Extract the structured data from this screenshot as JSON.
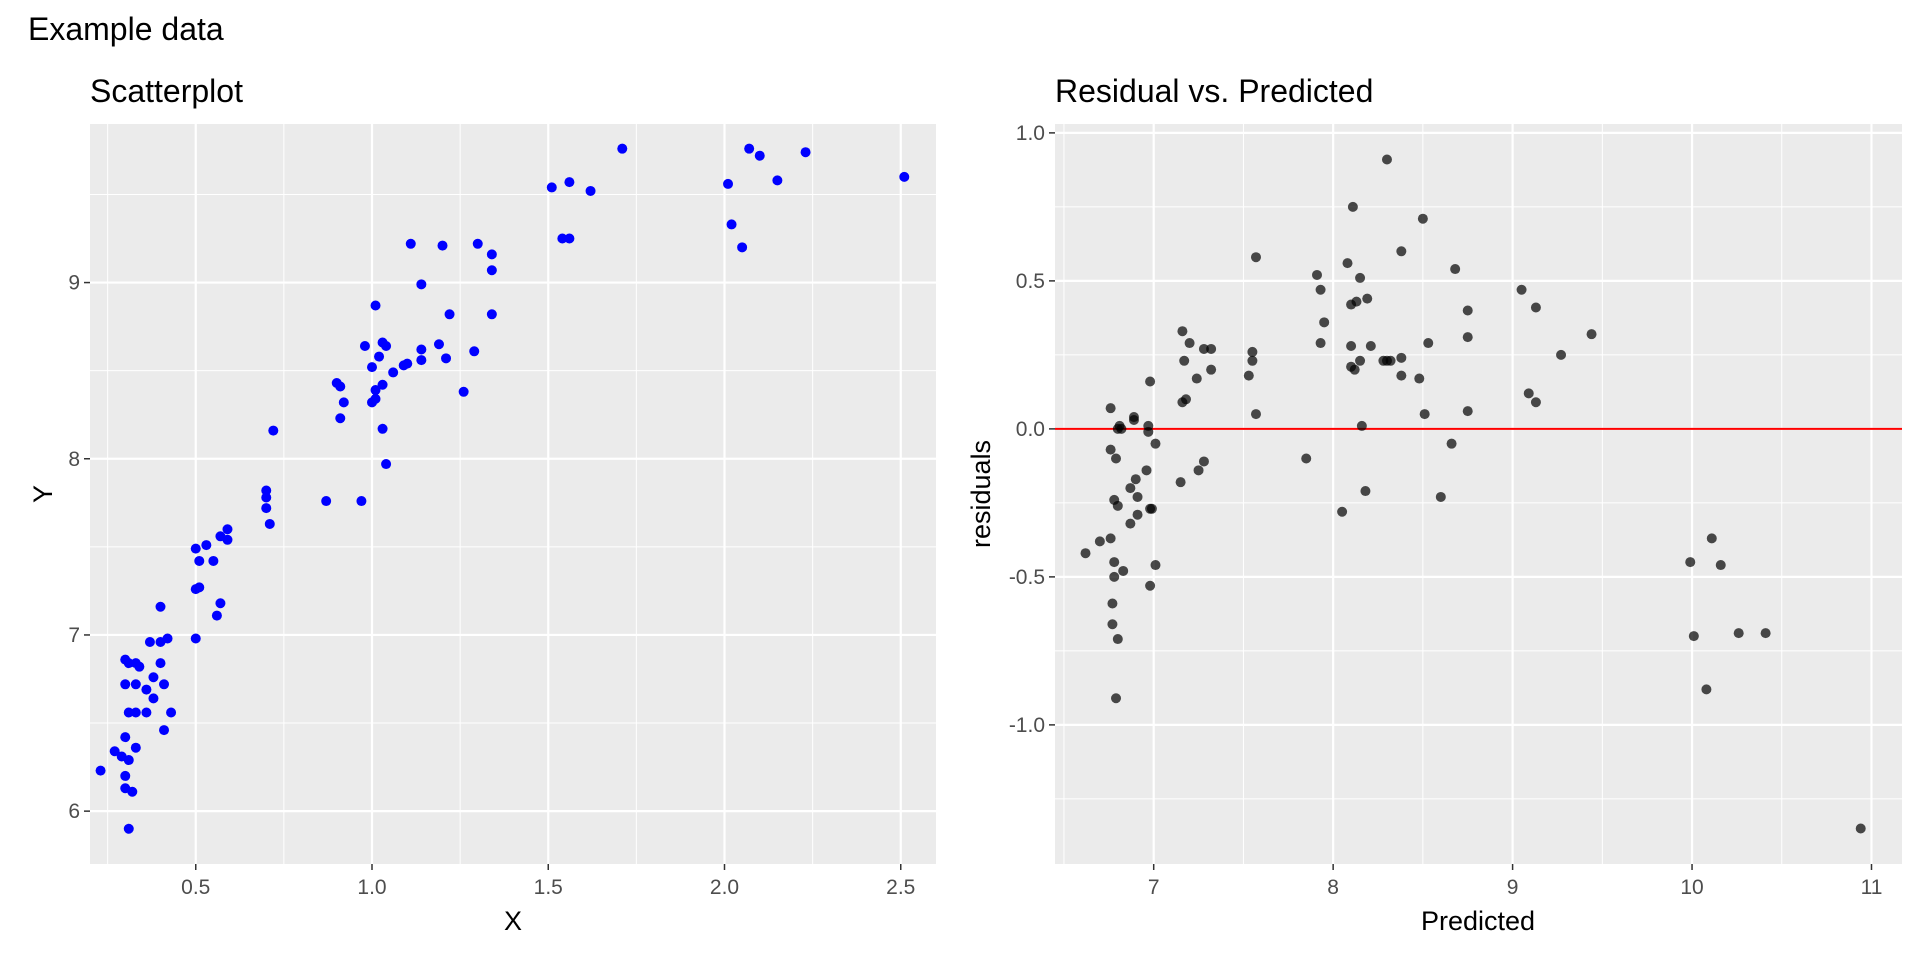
{
  "figure": {
    "title": "Example data"
  },
  "chart_data": [
    {
      "type": "scatter",
      "title": "Scatterplot",
      "xlabel": "X",
      "ylabel": "Y",
      "xlim": [
        0.2,
        2.6
      ],
      "ylim": [
        5.7,
        9.9
      ],
      "xticks": [
        0.5,
        1.0,
        1.5,
        2.0,
        2.5
      ],
      "xtick_labels": [
        "0.5",
        "1.0",
        "1.5",
        "2.0",
        "2.5"
      ],
      "yticks": [
        6,
        7,
        8,
        9
      ],
      "ytick_labels": [
        "6",
        "7",
        "8",
        "9"
      ],
      "grid": true,
      "point_color": "#0000ff",
      "points": [
        [
          0.23,
          6.23
        ],
        [
          0.27,
          6.34
        ],
        [
          0.29,
          6.31
        ],
        [
          0.3,
          6.42
        ],
        [
          0.3,
          6.13
        ],
        [
          0.3,
          6.2
        ],
        [
          0.31,
          6.29
        ],
        [
          0.31,
          5.9
        ],
        [
          0.32,
          6.11
        ],
        [
          0.33,
          6.36
        ],
        [
          0.33,
          6.56
        ],
        [
          0.31,
          6.56
        ],
        [
          0.3,
          6.72
        ],
        [
          0.33,
          6.72
        ],
        [
          0.31,
          6.84
        ],
        [
          0.3,
          6.86
        ],
        [
          0.33,
          6.84
        ],
        [
          0.34,
          6.82
        ],
        [
          0.36,
          6.56
        ],
        [
          0.36,
          6.69
        ],
        [
          0.37,
          6.96
        ],
        [
          0.38,
          6.64
        ],
        [
          0.38,
          6.76
        ],
        [
          0.4,
          6.84
        ],
        [
          0.4,
          6.96
        ],
        [
          0.41,
          6.46
        ],
        [
          0.41,
          6.72
        ],
        [
          0.42,
          6.98
        ],
        [
          0.43,
          6.56
        ],
        [
          0.4,
          7.16
        ],
        [
          0.5,
          6.98
        ],
        [
          0.5,
          7.26
        ],
        [
          0.51,
          7.27
        ],
        [
          0.5,
          7.49
        ],
        [
          0.51,
          7.42
        ],
        [
          0.53,
          7.51
        ],
        [
          0.55,
          7.42
        ],
        [
          0.56,
          7.11
        ],
        [
          0.57,
          7.18
        ],
        [
          0.57,
          7.56
        ],
        [
          0.59,
          7.54
        ],
        [
          0.59,
          7.6
        ],
        [
          0.7,
          7.72
        ],
        [
          0.7,
          7.82
        ],
        [
          0.7,
          7.78
        ],
        [
          0.71,
          7.63
        ],
        [
          0.72,
          8.16
        ],
        [
          0.87,
          7.76
        ],
        [
          0.9,
          8.43
        ],
        [
          0.91,
          8.23
        ],
        [
          0.91,
          8.41
        ],
        [
          0.92,
          8.32
        ],
        [
          0.97,
          7.76
        ],
        [
          0.98,
          8.64
        ],
        [
          1.0,
          8.52
        ],
        [
          1.0,
          8.32
        ],
        [
          1.01,
          8.34
        ],
        [
          1.01,
          8.87
        ],
        [
          1.01,
          8.39
        ],
        [
          1.02,
          8.58
        ],
        [
          1.03,
          8.66
        ],
        [
          1.03,
          8.17
        ],
        [
          1.03,
          8.42
        ],
        [
          1.04,
          7.97
        ],
        [
          1.04,
          8.64
        ],
        [
          1.06,
          8.49
        ],
        [
          1.09,
          8.53
        ],
        [
          1.1,
          8.54
        ],
        [
          1.11,
          9.22
        ],
        [
          1.14,
          8.99
        ],
        [
          1.14,
          8.62
        ],
        [
          1.14,
          8.56
        ],
        [
          1.19,
          8.65
        ],
        [
          1.2,
          9.21
        ],
        [
          1.21,
          8.57
        ],
        [
          1.22,
          8.82
        ],
        [
          1.26,
          8.38
        ],
        [
          1.29,
          8.61
        ],
        [
          1.3,
          9.22
        ],
        [
          1.34,
          9.16
        ],
        [
          1.34,
          9.07
        ],
        [
          1.34,
          8.82
        ],
        [
          1.51,
          9.54
        ],
        [
          1.54,
          9.25
        ],
        [
          1.56,
          9.25
        ],
        [
          1.56,
          9.57
        ],
        [
          1.62,
          9.52
        ],
        [
          1.71,
          9.76
        ],
        [
          2.01,
          9.56
        ],
        [
          2.02,
          9.33
        ],
        [
          2.05,
          9.2
        ],
        [
          2.07,
          9.76
        ],
        [
          2.1,
          9.72
        ],
        [
          2.15,
          9.58
        ],
        [
          2.23,
          9.74
        ],
        [
          2.51,
          9.6
        ]
      ]
    },
    {
      "type": "scatter",
      "title": "Residual vs. Predicted",
      "xlabel": "Predicted",
      "ylabel": "residuals",
      "xlim": [
        6.45,
        11.17
      ],
      "ylim": [
        -1.47,
        1.03
      ],
      "xticks": [
        7,
        8,
        9,
        10,
        11
      ],
      "xtick_labels": [
        "7",
        "8",
        "9",
        "10",
        "11"
      ],
      "yticks": [
        1.0,
        0.5,
        0.0,
        -0.5,
        -1.0
      ],
      "ytick_labels": [
        "1.0",
        "0.5",
        "0.0",
        "-0.5",
        "-1.0"
      ],
      "grid": true,
      "point_color": "#000000",
      "point_opacity": 0.7,
      "hline": {
        "y": 0,
        "color": "#ff0000"
      },
      "points": [
        [
          6.62,
          -0.42
        ],
        [
          6.7,
          -0.38
        ],
        [
          6.76,
          0.07
        ],
        [
          6.76,
          -0.07
        ],
        [
          6.76,
          -0.37
        ],
        [
          6.77,
          -0.59
        ],
        [
          6.77,
          -0.66
        ],
        [
          6.78,
          -0.24
        ],
        [
          6.78,
          -0.45
        ],
        [
          6.78,
          -0.5
        ],
        [
          6.79,
          -0.1
        ],
        [
          6.79,
          -0.91
        ],
        [
          6.8,
          -0.26
        ],
        [
          6.8,
          -0.71
        ],
        [
          6.8,
          0.0
        ],
        [
          6.81,
          0.01
        ],
        [
          6.82,
          0.0
        ],
        [
          6.83,
          -0.48
        ],
        [
          6.87,
          -0.2
        ],
        [
          6.87,
          -0.32
        ],
        [
          6.89,
          0.04
        ],
        [
          6.89,
          0.03
        ],
        [
          6.9,
          -0.17
        ],
        [
          6.91,
          -0.23
        ],
        [
          6.91,
          -0.29
        ],
        [
          6.96,
          -0.14
        ],
        [
          6.97,
          0.01
        ],
        [
          6.97,
          -0.01
        ],
        [
          6.98,
          -0.27
        ],
        [
          6.98,
          -0.53
        ],
        [
          6.98,
          0.16
        ],
        [
          6.99,
          -0.27
        ],
        [
          7.01,
          -0.05
        ],
        [
          7.01,
          -0.46
        ],
        [
          7.15,
          -0.18
        ],
        [
          7.16,
          0.09
        ],
        [
          7.16,
          0.33
        ],
        [
          7.17,
          0.23
        ],
        [
          7.18,
          0.1
        ],
        [
          7.2,
          0.29
        ],
        [
          7.24,
          0.17
        ],
        [
          7.25,
          -0.14
        ],
        [
          7.28,
          -0.11
        ],
        [
          7.28,
          0.27
        ],
        [
          7.32,
          0.27
        ],
        [
          7.32,
          0.2
        ],
        [
          7.53,
          0.18
        ],
        [
          7.55,
          0.26
        ],
        [
          7.55,
          0.23
        ],
        [
          7.57,
          0.58
        ],
        [
          7.57,
          0.05
        ],
        [
          7.85,
          -0.1
        ],
        [
          7.91,
          0.52
        ],
        [
          7.93,
          0.47
        ],
        [
          7.93,
          0.29
        ],
        [
          7.95,
          0.36
        ],
        [
          8.05,
          -0.28
        ],
        [
          8.08,
          0.56
        ],
        [
          8.1,
          0.21
        ],
        [
          8.1,
          0.42
        ],
        [
          8.1,
          0.28
        ],
        [
          8.11,
          0.75
        ],
        [
          8.12,
          0.2
        ],
        [
          8.13,
          0.43
        ],
        [
          8.15,
          0.23
        ],
        [
          8.15,
          0.51
        ],
        [
          8.16,
          0.01
        ],
        [
          8.18,
          -0.21
        ],
        [
          8.19,
          0.44
        ],
        [
          8.21,
          0.28
        ],
        [
          8.28,
          0.23
        ],
        [
          8.3,
          0.23
        ],
        [
          8.3,
          0.91
        ],
        [
          8.32,
          0.23
        ],
        [
          8.38,
          0.6
        ],
        [
          8.38,
          0.24
        ],
        [
          8.38,
          0.18
        ],
        [
          8.48,
          0.17
        ],
        [
          8.5,
          0.71
        ],
        [
          8.51,
          0.05
        ],
        [
          8.53,
          0.29
        ],
        [
          8.6,
          -0.23
        ],
        [
          8.66,
          -0.05
        ],
        [
          8.68,
          0.54
        ],
        [
          8.75,
          0.4
        ],
        [
          8.75,
          0.31
        ],
        [
          8.75,
          0.06
        ],
        [
          9.05,
          0.47
        ],
        [
          9.09,
          0.12
        ],
        [
          9.13,
          0.41
        ],
        [
          9.13,
          0.09
        ],
        [
          9.27,
          0.25
        ],
        [
          9.44,
          0.32
        ],
        [
          9.99,
          -0.45
        ],
        [
          10.01,
          -0.7
        ],
        [
          10.08,
          -0.88
        ],
        [
          10.11,
          -0.37
        ],
        [
          10.16,
          -0.46
        ],
        [
          10.26,
          -0.69
        ],
        [
          10.41,
          -0.69
        ],
        [
          10.94,
          -1.35
        ]
      ]
    }
  ]
}
